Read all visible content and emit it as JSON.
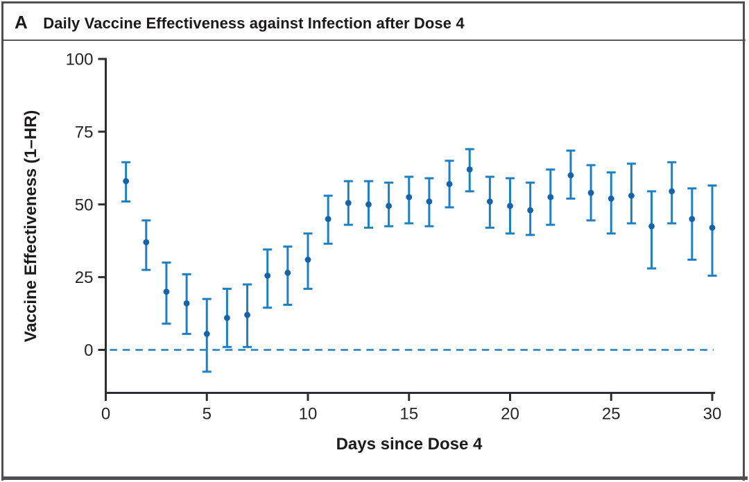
{
  "colors": {
    "error_bar": "#1d80c3",
    "marker": "#1563a8",
    "reference_line": "#1d80c3",
    "axis": "#2e2d2f",
    "text": "#1c1a1b",
    "border": "#4f4f52"
  },
  "chart_data": {
    "type": "scatter",
    "panel": "A",
    "title": "Daily Vaccine Effectiveness against Infection after Dose 4",
    "xlabel": "Days since Dose 4",
    "ylabel": "Vaccine Effectiveness (1–HR)",
    "xlim": [
      0,
      30
    ],
    "ylim": [
      0,
      100
    ],
    "x_ticks": [
      0,
      5,
      10,
      15,
      20,
      25,
      30
    ],
    "y_ticks": [
      100,
      75,
      50,
      25,
      0
    ],
    "grid": false,
    "legend": "none",
    "reference_line_y": 0,
    "reference_line_style": "dashed",
    "error_bars": "95% CI",
    "points": [
      {
        "day": 1,
        "ve": 58,
        "ci_low": 51,
        "ci_high": 64.5
      },
      {
        "day": 2,
        "ve": 37,
        "ci_low": 27.5,
        "ci_high": 44.5
      },
      {
        "day": 3,
        "ve": 20,
        "ci_low": 9,
        "ci_high": 30
      },
      {
        "day": 4,
        "ve": 16,
        "ci_low": 5.5,
        "ci_high": 26
      },
      {
        "day": 5,
        "ve": 5.5,
        "ci_low": -7.5,
        "ci_high": 17.5
      },
      {
        "day": 6,
        "ve": 11,
        "ci_low": 1,
        "ci_high": 21
      },
      {
        "day": 7,
        "ve": 12,
        "ci_low": 1,
        "ci_high": 22.5
      },
      {
        "day": 8,
        "ve": 25.5,
        "ci_low": 14.5,
        "ci_high": 34.5
      },
      {
        "day": 9,
        "ve": 26.5,
        "ci_low": 15.5,
        "ci_high": 35.5
      },
      {
        "day": 10,
        "ve": 31,
        "ci_low": 21,
        "ci_high": 40
      },
      {
        "day": 11,
        "ve": 45,
        "ci_low": 36.5,
        "ci_high": 53
      },
      {
        "day": 12,
        "ve": 50.5,
        "ci_low": 43,
        "ci_high": 58
      },
      {
        "day": 13,
        "ve": 50,
        "ci_low": 42,
        "ci_high": 58
      },
      {
        "day": 14,
        "ve": 49.5,
        "ci_low": 42.5,
        "ci_high": 57.5
      },
      {
        "day": 15,
        "ve": 52.5,
        "ci_low": 43.5,
        "ci_high": 59.5
      },
      {
        "day": 16,
        "ve": 51,
        "ci_low": 42.5,
        "ci_high": 59
      },
      {
        "day": 17,
        "ve": 57,
        "ci_low": 49,
        "ci_high": 65
      },
      {
        "day": 18,
        "ve": 62,
        "ci_low": 54.5,
        "ci_high": 69
      },
      {
        "day": 19,
        "ve": 51,
        "ci_low": 42,
        "ci_high": 59.5
      },
      {
        "day": 20,
        "ve": 49.5,
        "ci_low": 40,
        "ci_high": 59
      },
      {
        "day": 21,
        "ve": 48,
        "ci_low": 39.5,
        "ci_high": 57.5
      },
      {
        "day": 22,
        "ve": 52.5,
        "ci_low": 43,
        "ci_high": 62
      },
      {
        "day": 23,
        "ve": 60,
        "ci_low": 52,
        "ci_high": 68.5
      },
      {
        "day": 24,
        "ve": 54,
        "ci_low": 44.5,
        "ci_high": 63.5
      },
      {
        "day": 25,
        "ve": 52,
        "ci_low": 40,
        "ci_high": 61
      },
      {
        "day": 26,
        "ve": 53,
        "ci_low": 43.5,
        "ci_high": 64
      },
      {
        "day": 27,
        "ve": 42.5,
        "ci_low": 28,
        "ci_high": 54.5
      },
      {
        "day": 28,
        "ve": 54.5,
        "ci_low": 43.5,
        "ci_high": 64.5
      },
      {
        "day": 29,
        "ve": 45,
        "ci_low": 31,
        "ci_high": 55.5
      },
      {
        "day": 30,
        "ve": 42,
        "ci_low": 25.5,
        "ci_high": 56.5
      }
    ]
  }
}
